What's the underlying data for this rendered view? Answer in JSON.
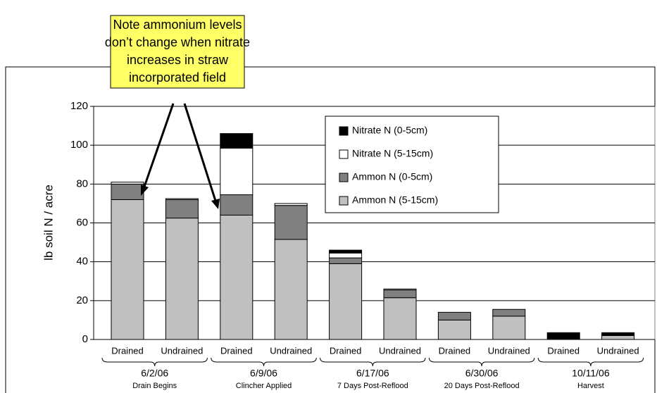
{
  "chart_data": {
    "type": "stacked_bar",
    "y_label": "lb soil N / acre",
    "annotation": [
      "Note ammonium levels",
      "don’t change when nitrate",
      "increases in straw",
      "incorporated field"
    ],
    "categories": [
      "Drained",
      "Undrained",
      "Drained",
      "Undrained",
      "Drained",
      "Undrained",
      "Drained",
      "Undrained",
      "Drained",
      "Undrained"
    ],
    "groups": [
      {
        "label": "6/2/06",
        "sublabel": "Drain Begins"
      },
      {
        "label": "6/9/06",
        "sublabel": "Clincher Applied"
      },
      {
        "label": "6/17/06",
        "sublabel": "7 Days Post-Reflood"
      },
      {
        "label": "6/30/06",
        "sublabel": "20 Days Post-Reflood"
      },
      {
        "label": "10/11/06",
        "sublabel": "Harvest"
      }
    ],
    "series": [
      {
        "name": "Ammon N (5-15cm)",
        "color": "#c0c0c0",
        "values": [
          72,
          62.5,
          64,
          51.5,
          39,
          21.5,
          10,
          12,
          0,
          2
        ]
      },
      {
        "name": "Ammon N (0-5cm)",
        "color": "#808080",
        "values": [
          8,
          9.5,
          10.5,
          17.5,
          3,
          4,
          4,
          3.5,
          0,
          0
        ]
      },
      {
        "name": "Nitrate N (5-15cm)",
        "color": "#ffffff",
        "values": [
          1,
          0.5,
          24,
          1,
          2.5,
          0.5,
          0,
          0,
          0,
          0
        ]
      },
      {
        "name": "Nitrate N (0-5cm)",
        "color": "#000000",
        "values": [
          0,
          0,
          7.5,
          0,
          1.5,
          0,
          0,
          0,
          3.5,
          1.5
        ]
      }
    ],
    "ylim": [
      0,
      120
    ],
    "yticks": [
      0,
      20,
      40,
      60,
      80,
      100,
      120
    ],
    "grid": true
  }
}
